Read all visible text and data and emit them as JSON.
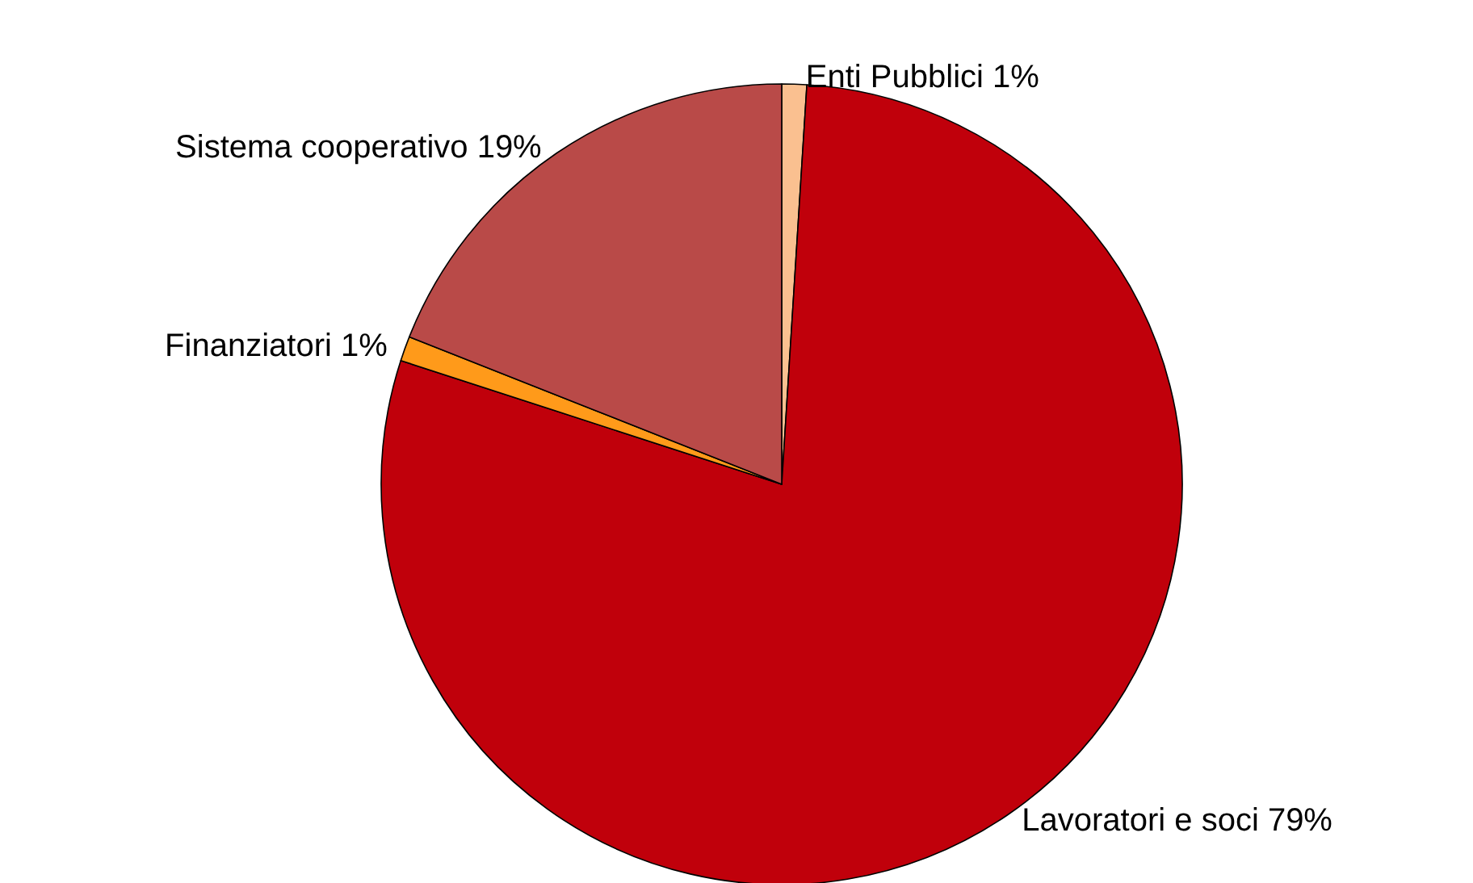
{
  "chart_data": {
    "type": "pie",
    "categories": [
      "Enti Pubblici",
      "Lavoratori e soci",
      "Finanziatori",
      "Sistema cooperativo"
    ],
    "values": [
      1,
      79,
      1,
      19
    ],
    "value_labels": [
      "1%",
      "79%",
      "1%",
      "19%"
    ],
    "colors": [
      "#fac090",
      "#c0000b",
      "#ff9a1a",
      "#b94a48"
    ],
    "legend": false
  }
}
